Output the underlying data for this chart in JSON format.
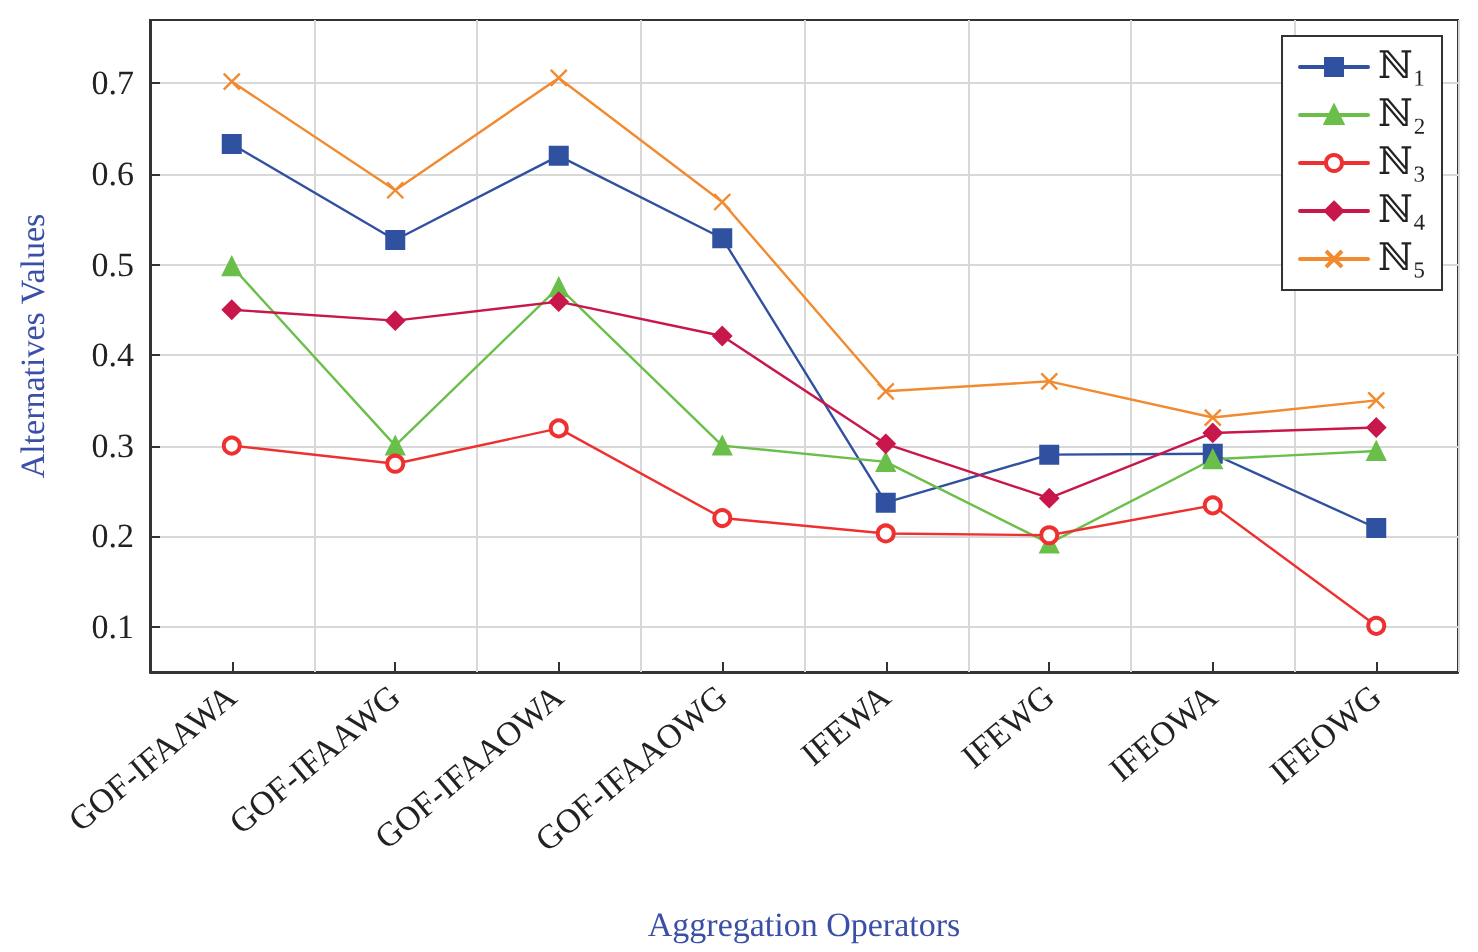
{
  "chart_data": {
    "type": "line",
    "xlabel": "Aggregation Operators",
    "ylabel": "Alternatives Values",
    "categories": [
      "GOF-IFAAWA",
      "GOF-IFAAWG",
      "GOF-IFAAOWA",
      "GOF-IFAAOWG",
      "IFEWA",
      "IFEWG",
      "IFEOWA",
      "IFEOWG"
    ],
    "ylim": [
      0.05,
      0.77
    ],
    "yticks": [
      0.1,
      0.2,
      0.3,
      0.4,
      0.5,
      0.6,
      0.7
    ],
    "grid": true,
    "legend": "top right",
    "line_style": "solid",
    "series": [
      {
        "name": "ℕ₁",
        "color": "#3050a0",
        "marker": "square",
        "values": [
          0.633,
          0.527,
          0.62,
          0.529,
          0.237,
          0.29,
          0.291,
          0.209
        ]
      },
      {
        "name": "ℕ₂",
        "color": "#6abf4b",
        "marker": "triangle",
        "values": [
          0.498,
          0.3,
          0.475,
          0.3,
          0.282,
          0.192,
          0.285,
          0.294
        ]
      },
      {
        "name": "ℕ₃",
        "color": "#ee3030",
        "marker": "circle",
        "values": [
          0.3,
          0.28,
          0.319,
          0.22,
          0.203,
          0.201,
          0.234,
          0.101
        ]
      },
      {
        "name": "ℕ₄",
        "color": "#c8174a",
        "marker": "diamond",
        "values": [
          0.45,
          0.438,
          0.459,
          0.421,
          0.302,
          0.242,
          0.314,
          0.32
        ]
      },
      {
        "name": "ℕ₅",
        "color": "#f28a30",
        "marker": "cross",
        "values": [
          0.702,
          0.582,
          0.706,
          0.569,
          0.36,
          0.371,
          0.331,
          0.35
        ]
      }
    ]
  }
}
